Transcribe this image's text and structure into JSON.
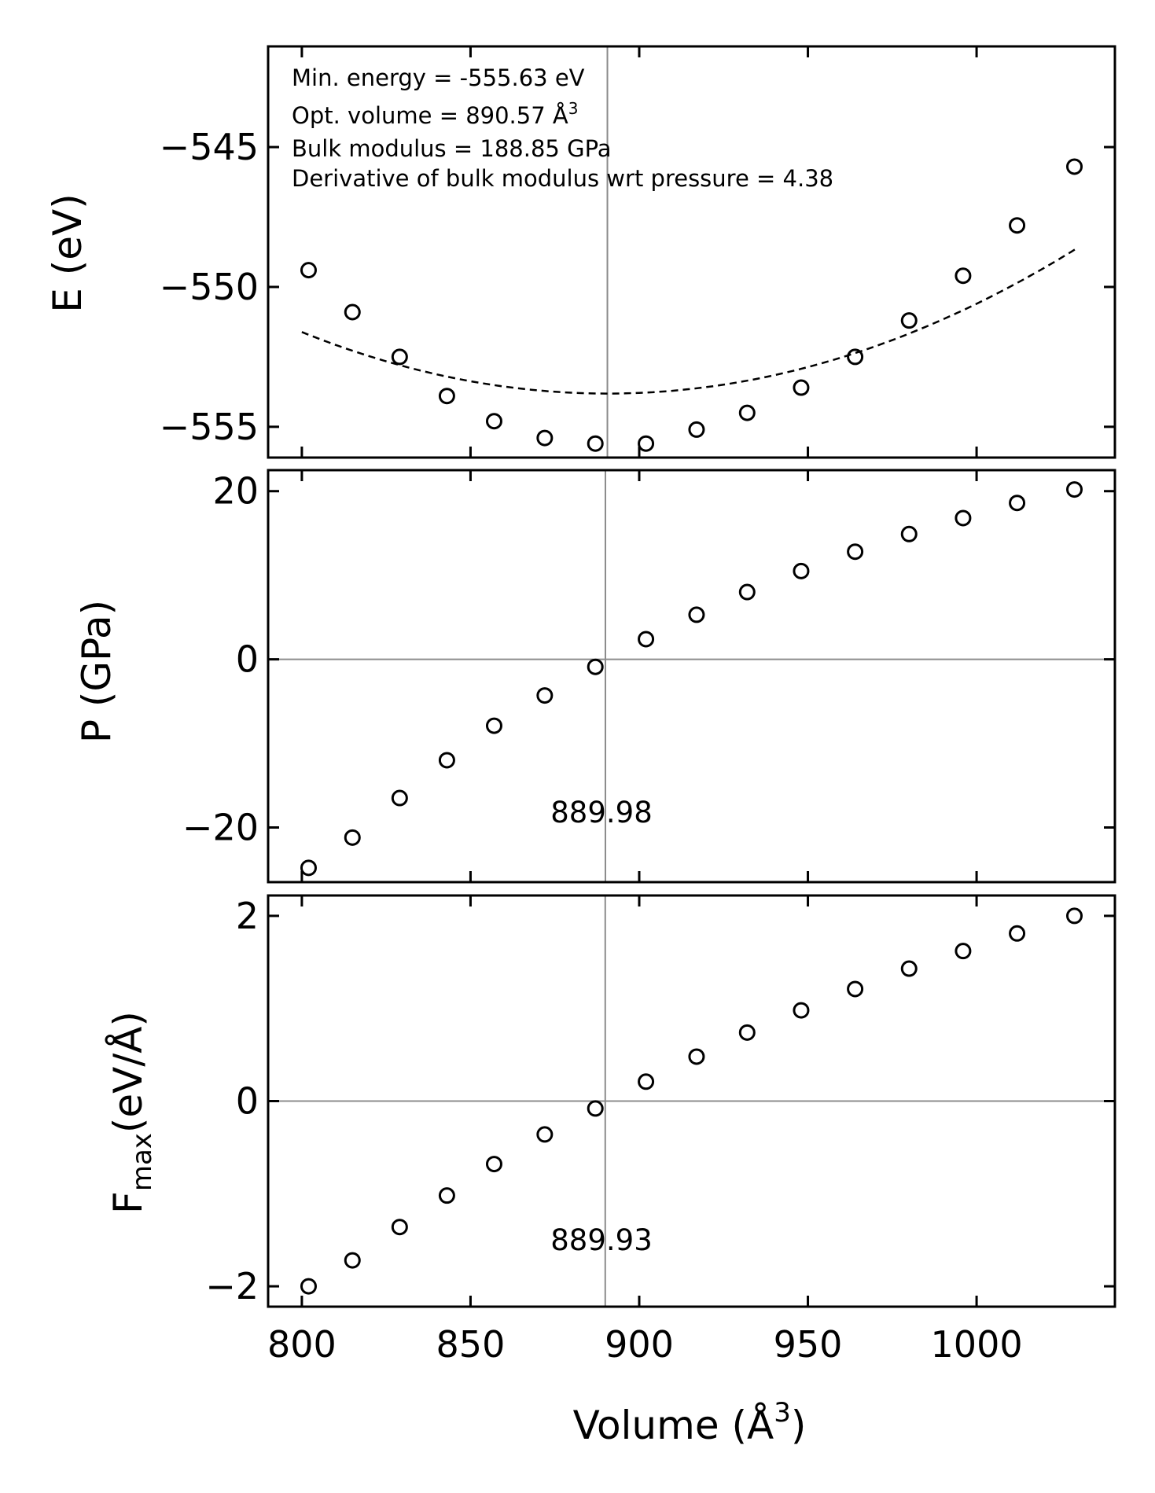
{
  "chart_data": [
    {
      "type": "scatter",
      "panel": "energy",
      "ylabel": "E (eV)",
      "xlim": [
        790,
        1041
      ],
      "ylim": [
        -556.1,
        -541.4
      ],
      "yticks": [
        -545,
        -550,
        -555
      ],
      "ytick_labels": [
        "−545",
        "−550",
        "−555"
      ],
      "annotations": [
        "Min. energy = -555.63 eV",
        "Opt. volume = 890.57 Å",
        "Bulk modulus = 188.85 GPa",
        "Derivative of bulk modulus wrt pressure = 4.38"
      ],
      "annotation_superscript": "3",
      "vline_x": 890.57,
      "series": [
        {
          "marker": "open-circle",
          "fit": "dashed",
          "x": [
            802,
            815,
            829,
            843,
            857,
            872,
            887,
            902,
            917,
            932,
            948,
            964,
            980,
            996,
            1012,
            1029
          ],
          "y": [
            -549.4,
            -550.9,
            -552.5,
            -553.9,
            -554.8,
            -555.4,
            -555.6,
            -555.6,
            -555.1,
            -554.5,
            -553.6,
            -552.5,
            -551.2,
            -549.6,
            -547.8,
            -545.7
          ]
        }
      ]
    },
    {
      "type": "scatter",
      "panel": "pressure",
      "ylabel": "P (GPa)",
      "xlim": [
        790,
        1041
      ],
      "ylim": [
        -26.5,
        22.5
      ],
      "yticks": [
        20,
        0,
        -20
      ],
      "ytick_labels": [
        "20",
        "0",
        "−20"
      ],
      "hline_y": 0,
      "vline_x": 889.98,
      "vline_label": "889.98",
      "series": [
        {
          "marker": "open-circle",
          "x": [
            802,
            815,
            829,
            843,
            857,
            872,
            887,
            902,
            917,
            932,
            948,
            964,
            980,
            996,
            1012,
            1029
          ],
          "y": [
            -24.8,
            -21.2,
            -16.5,
            -12.0,
            -7.9,
            -4.3,
            -0.9,
            2.4,
            5.3,
            8.0,
            10.5,
            12.8,
            14.9,
            16.8,
            18.6,
            20.2
          ]
        }
      ]
    },
    {
      "type": "scatter",
      "panel": "fmax",
      "ylabel": "F",
      "ylabel_subscript": "max",
      "ylabel_unit": "(eV/Å)",
      "xlabel": "Volume (Å",
      "xlabel_superscript": "3",
      "xlabel_close": ")",
      "xlim": [
        790,
        1041
      ],
      "ylim": [
        -2.22,
        2.22
      ],
      "xticks": [
        800,
        850,
        900,
        950,
        1000
      ],
      "xtick_labels": [
        "800",
        "850",
        "900",
        "950",
        "1000"
      ],
      "yticks": [
        2,
        0,
        -2
      ],
      "ytick_labels": [
        "2",
        "0",
        "−2"
      ],
      "hline_y": 0,
      "vline_x": 889.93,
      "vline_label": "889.93",
      "series": [
        {
          "marker": "open-circle",
          "x": [
            802,
            815,
            829,
            843,
            857,
            872,
            887,
            902,
            917,
            932,
            948,
            964,
            980,
            996,
            1012,
            1029
          ],
          "y": [
            -2.0,
            -1.72,
            -1.36,
            -1.02,
            -0.68,
            -0.36,
            -0.08,
            0.21,
            0.48,
            0.74,
            0.98,
            1.21,
            1.43,
            1.62,
            1.81,
            2.0
          ]
        }
      ]
    }
  ]
}
